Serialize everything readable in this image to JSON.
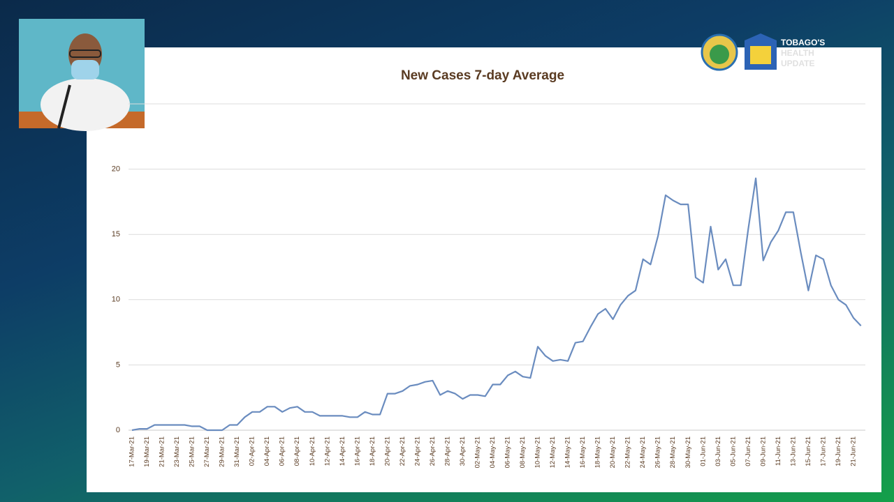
{
  "chart_data": {
    "type": "line",
    "title": "New Cases 7-day Average",
    "categories": [
      "17-Mar-21",
      null,
      "19-Mar-21",
      null,
      "21-Mar-21",
      null,
      "23-Mar-21",
      null,
      "25-Mar-21",
      null,
      "27-Mar-21",
      null,
      "29-Mar-21",
      null,
      "31-Mar-21",
      null,
      "02-Apr-21",
      null,
      "04-Apr-21",
      null,
      "06-Apr-21",
      null,
      "08-Apr-21",
      null,
      "10-Apr-21",
      null,
      "12-Apr-21",
      null,
      "14-Apr-21",
      null,
      "16-Apr-21",
      null,
      "18-Apr-21",
      null,
      "20-Apr-21",
      null,
      "22-Apr-21",
      null,
      "24-Apr-21",
      null,
      "26-Apr-21",
      null,
      "28-Apr-21",
      null,
      "30-Apr-21",
      null,
      "02-May-21",
      null,
      "04-May-21",
      null,
      "06-May-21",
      null,
      "08-May-21",
      null,
      "10-May-21",
      null,
      "12-May-21",
      null,
      "14-May-21",
      null,
      "16-May-21",
      null,
      "18-May-21",
      null,
      "20-May-21",
      null,
      "22-May-21",
      null,
      "24-May-21",
      null,
      "26-May-21",
      null,
      "28-May-21",
      null,
      "30-May-21",
      null,
      "01-Jun-21",
      null,
      "03-Jun-21",
      null,
      "05-Jun-21",
      null,
      "07-Jun-21",
      null,
      "09-Jun-21",
      null,
      "11-Jun-21",
      null,
      "13-Jun-21",
      null,
      "15-Jun-21",
      null,
      "17-Jun-21",
      null,
      "19-Jun-21",
      null,
      "21-Jun-21",
      null
    ],
    "values": [
      0,
      0.1,
      0.1,
      0.4,
      0.4,
      0.4,
      0.4,
      0.4,
      0.3,
      0.3,
      0,
      0,
      0,
      0.4,
      0.4,
      1.0,
      1.4,
      1.4,
      1.8,
      1.8,
      1.4,
      1.7,
      1.8,
      1.4,
      1.4,
      1.1,
      1.1,
      1.1,
      1.1,
      1.0,
      1.0,
      1.4,
      1.2,
      1.2,
      2.8,
      2.8,
      3.0,
      3.4,
      3.5,
      3.7,
      3.8,
      2.7,
      3.0,
      2.8,
      2.4,
      2.7,
      2.7,
      2.6,
      3.5,
      3.5,
      4.2,
      4.5,
      4.1,
      4.0,
      6.4,
      5.7,
      5.3,
      5.4,
      5.3,
      6.7,
      6.8,
      7.9,
      8.9,
      9.3,
      8.5,
      9.6,
      10.3,
      10.7,
      13.1,
      12.7,
      14.9,
      18.0,
      17.6,
      17.3,
      17.3,
      11.7,
      11.3,
      15.6,
      12.3,
      13.1,
      11.1,
      11.1,
      15.4,
      19.3,
      13.0,
      14.4,
      15.3,
      16.7,
      16.7,
      13.6,
      10.7,
      13.4,
      13.1,
      11.1,
      10.0,
      9.6,
      8.6,
      8.0
    ],
    "color": "#6a8cbf",
    "ylim": [
      0,
      25
    ],
    "yticks": [
      0,
      5,
      10,
      15,
      20
    ],
    "grid": true
  },
  "branding": {
    "lines": [
      "TOBAGO'S",
      "HEALTH",
      "UPDATE"
    ]
  }
}
